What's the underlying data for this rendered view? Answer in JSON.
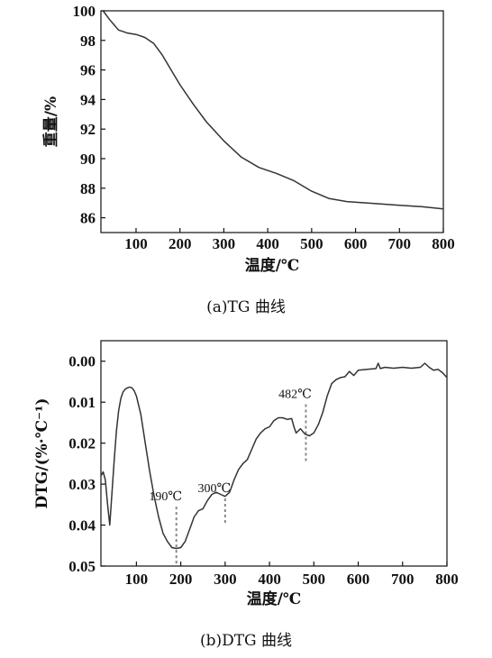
{
  "chart_data": [
    {
      "type": "line",
      "caption": "(a)TG 曲线",
      "xlabel": "温度/℃",
      "ylabel": "重量/%",
      "xlim": [
        20,
        800
      ],
      "ylim": [
        85,
        100
      ],
      "xticks": [
        "100",
        "200",
        "300",
        "400",
        "500",
        "600",
        "700",
        "800"
      ],
      "yticks": [
        "86",
        "88",
        "90",
        "92",
        "94",
        "96",
        "98",
        "100"
      ],
      "grid": false,
      "series": [
        {
          "x": [
            25,
            40,
            60,
            80,
            100,
            120,
            140,
            160,
            180,
            200,
            230,
            260,
            300,
            340,
            380,
            420,
            460,
            500,
            540,
            580,
            650,
            700,
            750,
            800
          ],
          "y": [
            100.0,
            99.4,
            98.7,
            98.5,
            98.4,
            98.2,
            97.8,
            97.0,
            96.0,
            95.0,
            93.7,
            92.5,
            91.2,
            90.1,
            89.4,
            89.0,
            88.5,
            87.8,
            87.3,
            87.1,
            86.95,
            86.85,
            86.75,
            86.6
          ]
        }
      ]
    },
    {
      "type": "line",
      "caption": "(b)DTG 曲线",
      "xlabel": "温度/℃",
      "ylabel": "DTG/(%·℃⁻¹)",
      "xlim": [
        20,
        800
      ],
      "ylim": [
        0.05,
        -0.005
      ],
      "xticks": [
        "100",
        "200",
        "300",
        "400",
        "500",
        "600",
        "700",
        "800"
      ],
      "yticks": [
        "0.00",
        "0.01",
        "0.02",
        "0.03",
        "0.04",
        "0.05"
      ],
      "grid": false,
      "annotations": [
        {
          "x": 190,
          "label": "190℃",
          "y_top": 0.0355
        },
        {
          "x": 300,
          "label": "300℃",
          "y_top": 0.0335
        },
        {
          "x": 482,
          "label": "482℃",
          "y_top": 0.0105
        }
      ],
      "series": [
        {
          "x": [
            20,
            25,
            30,
            35,
            40,
            45,
            50,
            55,
            60,
            65,
            70,
            75,
            80,
            85,
            90,
            95,
            100,
            110,
            120,
            130,
            140,
            150,
            160,
            170,
            180,
            190,
            200,
            210,
            220,
            230,
            240,
            250,
            260,
            270,
            280,
            290,
            300,
            310,
            320,
            330,
            340,
            350,
            360,
            370,
            380,
            390,
            400,
            410,
            420,
            430,
            440,
            450,
            455,
            460,
            465,
            470,
            480,
            490,
            500,
            510,
            520,
            530,
            540,
            550,
            560,
            570,
            580,
            590,
            600,
            620,
            640,
            645,
            650,
            660,
            680,
            700,
            720,
            740,
            750,
            760,
            770,
            780,
            790,
            800
          ],
          "y": [
            0.028,
            0.027,
            0.029,
            0.035,
            0.04,
            0.032,
            0.024,
            0.017,
            0.012,
            0.009,
            0.0075,
            0.0068,
            0.0065,
            0.0063,
            0.0065,
            0.0072,
            0.0085,
            0.013,
            0.02,
            0.027,
            0.033,
            0.038,
            0.042,
            0.044,
            0.0455,
            0.0457,
            0.0455,
            0.044,
            0.041,
            0.038,
            0.0365,
            0.036,
            0.034,
            0.0325,
            0.032,
            0.0325,
            0.033,
            0.032,
            0.029,
            0.0265,
            0.025,
            0.024,
            0.0215,
            0.019,
            0.0175,
            0.0165,
            0.016,
            0.0145,
            0.0138,
            0.0138,
            0.0142,
            0.014,
            0.016,
            0.0175,
            0.017,
            0.0165,
            0.0178,
            0.0182,
            0.0175,
            0.0155,
            0.0125,
            0.0085,
            0.0055,
            0.0045,
            0.004,
            0.0038,
            0.0025,
            0.0035,
            0.0022,
            0.002,
            0.0018,
            0.0005,
            0.0018,
            0.0015,
            0.0017,
            0.0015,
            0.0017,
            0.0015,
            0.0005,
            0.0015,
            0.0022,
            0.002,
            0.0028,
            0.004
          ]
        }
      ]
    }
  ]
}
